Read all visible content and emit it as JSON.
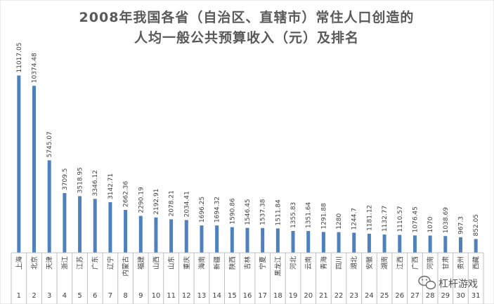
{
  "chart_data": {
    "type": "bar",
    "title_line1": "2008年我国各省（自治区、直辖市）常住人口创造的",
    "title_line2": "人均一般公共预算收入（元）及排名",
    "categories": [
      "上海",
      "北京",
      "天津",
      "浙江",
      "江苏",
      "广东",
      "辽宁",
      "内蒙古",
      "福建",
      "山西",
      "山东",
      "重庆",
      "海南",
      "新疆",
      "陕西",
      "吉林",
      "宁夏",
      "黑龙江",
      "河北",
      "云南",
      "青海",
      "四川",
      "湖北",
      "安徽",
      "湖南",
      "江西",
      "广西",
      "河南",
      "甘肃",
      "贵州",
      "西藏"
    ],
    "ranks": [
      "1",
      "2",
      "3",
      "4",
      "5",
      "6",
      "7",
      "8",
      "9",
      "10",
      "11",
      "12",
      "13",
      "14",
      "15",
      "16",
      "17",
      "18",
      "19",
      "20",
      "21",
      "22",
      "23",
      "24",
      "25",
      "26",
      "27",
      "28",
      "29",
      "30",
      "31"
    ],
    "values": [
      11017.05,
      10374.48,
      5745.07,
      3709.5,
      3518.95,
      3346.12,
      3142.71,
      2662.36,
      2290.19,
      2192.91,
      2078.21,
      2034.41,
      1696.25,
      1694.32,
      1590.86,
      1546.45,
      1537.38,
      1511.84,
      1355.83,
      1351.64,
      1291.88,
      1280,
      1244.7,
      1181.12,
      1132.77,
      1110.57,
      1076.45,
      1070,
      1038.69,
      967.3,
      852.05
    ],
    "value_labels": [
      "11017.05",
      "10374.48",
      "5745.07",
      "3709.5",
      "3518.95",
      "3346.12",
      "3142.71",
      "2662.36",
      "2290.19",
      "2192.91",
      "2078.21",
      "2034.41",
      "1696.25",
      "1694.32",
      "1590.86",
      "1546.45",
      "1537.38",
      "1511.84",
      "1355.83",
      "1351.64",
      "1291.88",
      "1280",
      "1244.7",
      "1181.12",
      "1132.77",
      "1110.57",
      "1076.45",
      "1070",
      "1038.69",
      "967.3",
      "852.05"
    ],
    "ylim": [
      0,
      12000
    ],
    "grid": false,
    "colors": {
      "bar": "#4f81bd",
      "title": "#595959",
      "axis": "#bfbfbf",
      "text": "#404040"
    }
  },
  "watermark": {
    "text": "杠杆游戏",
    "icon": "wechat-icon"
  }
}
